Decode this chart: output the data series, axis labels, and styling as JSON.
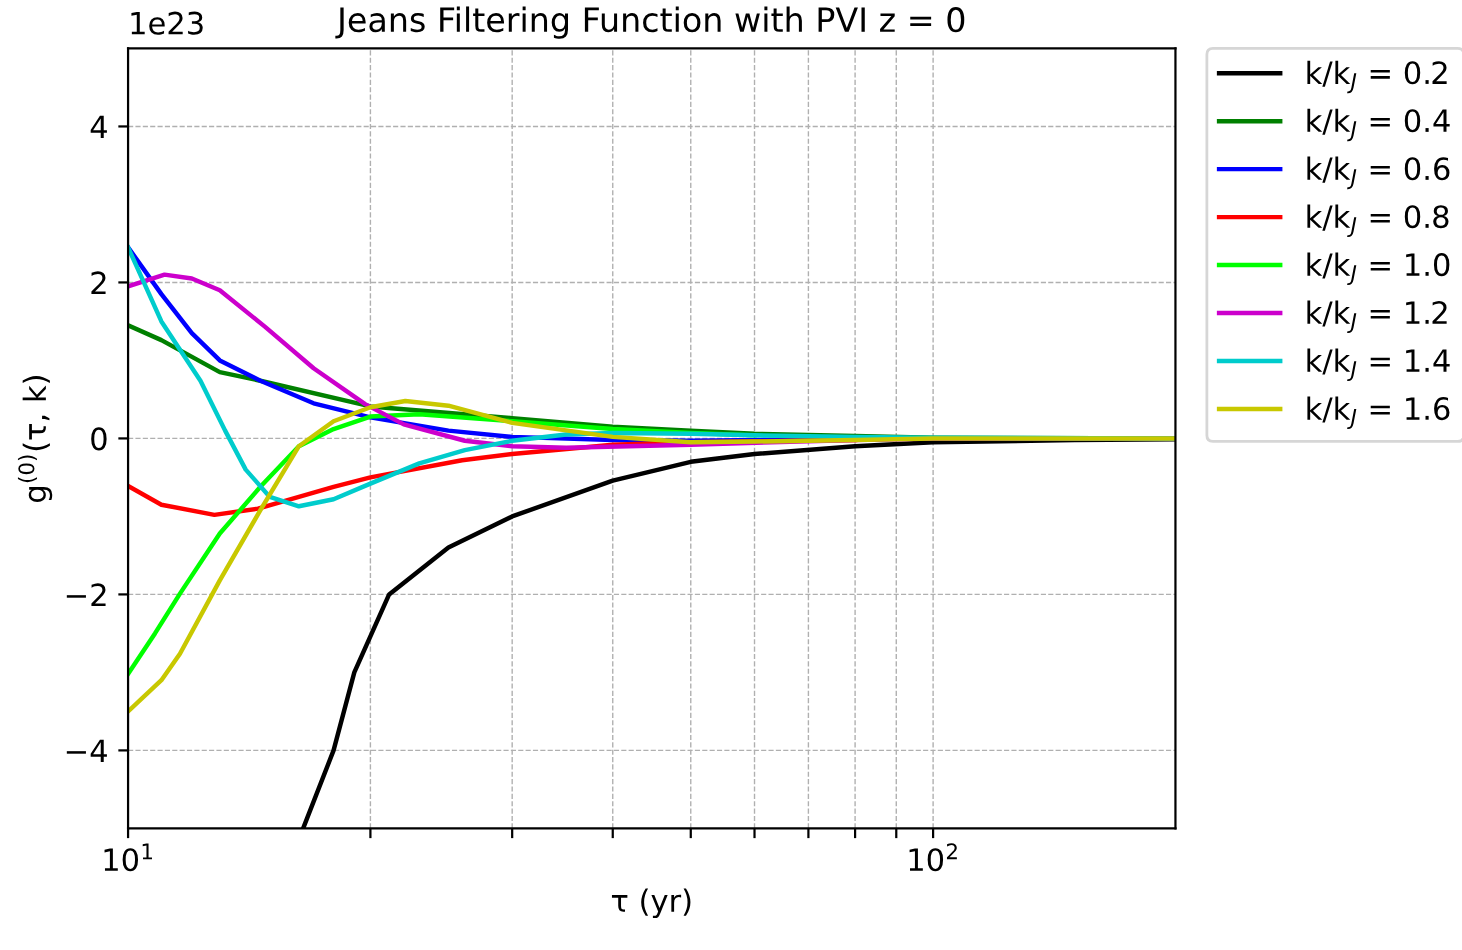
{
  "chart_data": {
    "type": "line",
    "title": "Jeans Filtering Function with PVI z = 0",
    "xlabel": "τ (yr)",
    "ylabel": "g$^{(0)}$(τ, k)",
    "annotations": [
      "1e23"
    ],
    "log": "x",
    "grid": true,
    "legend": "top right",
    "line_style": "solid",
    "marker": "none",
    "xlim": [
      10,
      200
    ],
    "ylim": [
      -5,
      5
    ],
    "xticks": [
      {
        "value": 10,
        "label": "10$^{1}$"
      },
      {
        "value": 20,
        "label": null
      },
      {
        "value": 30,
        "label": null
      },
      {
        "value": 40,
        "label": null
      },
      {
        "value": 50,
        "label": null
      },
      {
        "value": 60,
        "label": null
      },
      {
        "value": 70,
        "label": null
      },
      {
        "value": 80,
        "label": null
      },
      {
        "value": 90,
        "label": null
      },
      {
        "value": 100,
        "label": "10$^{2}$"
      }
    ],
    "yticks": [
      {
        "value": -4,
        "label": "−4"
      },
      {
        "value": -2,
        "label": "−2"
      },
      0,
      2,
      4
    ],
    "series": [
      {
        "name": "k/k$_{J}$ = 0.2",
        "color": "#000000",
        "x": [
          16.5,
          18,
          19.1,
          21.1,
          25,
          30,
          40,
          50,
          60,
          80,
          100,
          150,
          200
        ],
        "values": [
          -5,
          -4,
          -3,
          -2,
          -1.4,
          -1,
          -0.54,
          -0.3,
          -0.2,
          -0.1,
          -0.05,
          -0.02,
          -0.01
        ]
      },
      {
        "name": "k/k$_{J}$ = 0.4",
        "color": "#008000",
        "x": [
          10,
          11,
          13,
          14.6,
          20,
          30,
          40,
          50,
          60,
          80,
          100,
          200
        ],
        "values": [
          1.45,
          1.26,
          0.85,
          0.74,
          0.41,
          0.26,
          0.15,
          0.1,
          0.06,
          0.03,
          0.01,
          0
        ]
      },
      {
        "name": "k/k$_{J}$ = 0.6",
        "color": "#0000ff",
        "x": [
          10,
          11,
          12,
          13,
          14.6,
          17,
          20,
          25,
          30,
          40,
          50,
          80,
          100,
          200
        ],
        "values": [
          2.45,
          1.85,
          1.35,
          1.0,
          0.74,
          0.45,
          0.27,
          0.1,
          0.02,
          -0.02,
          -0.03,
          -0.01,
          0,
          0
        ]
      },
      {
        "name": "k/k$_{J}$ = 0.8",
        "color": "#ff0000",
        "x": [
          10,
          11,
          12.8,
          14.5,
          16.3,
          18,
          20,
          26,
          30,
          40,
          50,
          80
        ],
        "values": [
          -0.61,
          -0.85,
          -0.98,
          -0.9,
          -0.75,
          -0.62,
          -0.5,
          -0.28,
          -0.2,
          -0.08,
          -0.05,
          -0.02
        ]
      },
      {
        "name": "k/k$_{J}$ = 1.0",
        "color": "#00ff00",
        "x": [
          10,
          10.8,
          11.6,
          13,
          14.6,
          16.3,
          18,
          20,
          23,
          30,
          40,
          50,
          60
        ],
        "values": [
          -3.02,
          -2.5,
          -1.99,
          -1.22,
          -0.62,
          -0.1,
          0.12,
          0.28,
          0.31,
          0.22,
          0.12,
          0.07,
          0.04
        ]
      },
      {
        "name": "k/k$_{J}$ = 1.2",
        "color": "#cc00cc",
        "x": [
          10,
          11.1,
          12,
          13,
          14.8,
          17,
          19.7,
          22,
          26.2,
          30,
          35,
          50,
          80,
          100,
          200
        ],
        "values": [
          1.95,
          2.1,
          2.05,
          1.9,
          1.43,
          0.9,
          0.44,
          0.18,
          -0.03,
          -0.1,
          -0.12,
          -0.08,
          -0.02,
          0,
          0
        ]
      },
      {
        "name": "k/k$_{J}$ = 1.4",
        "color": "#00cccc",
        "x": [
          10,
          11,
          12.3,
          13.2,
          14,
          15,
          16.3,
          18,
          20,
          23,
          26.2,
          30,
          35,
          40,
          50,
          60,
          80,
          100,
          200
        ],
        "values": [
          2.45,
          1.5,
          0.74,
          0.1,
          -0.4,
          -0.75,
          -0.87,
          -0.78,
          -0.58,
          -0.32,
          -0.15,
          -0.03,
          0.05,
          0.07,
          0.06,
          0.04,
          0.02,
          0.01,
          0
        ]
      },
      {
        "name": "k/k$_{J}$ = 1.6",
        "color": "#c8c800",
        "x": [
          10,
          11,
          11.6,
          13,
          14.6,
          16.3,
          18,
          20,
          22.1,
          25,
          30,
          40,
          50,
          60,
          80,
          100,
          200
        ],
        "values": [
          -3.5,
          -3.1,
          -2.76,
          -1.82,
          -0.92,
          -0.1,
          0.22,
          0.4,
          0.48,
          0.42,
          0.2,
          0.02,
          -0.05,
          -0.04,
          -0.02,
          0,
          0
        ]
      }
    ]
  }
}
